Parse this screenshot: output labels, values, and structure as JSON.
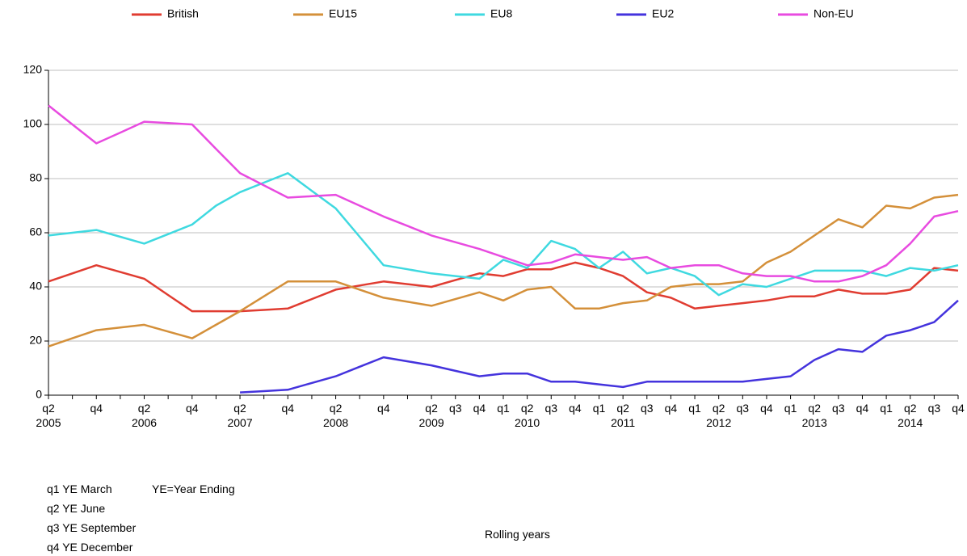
{
  "chart_data": {
    "type": "line",
    "categories": [
      "q2\n2005",
      null,
      "q4",
      null,
      "q2\n2006",
      null,
      "q4",
      null,
      "q2\n2007",
      null,
      "q4",
      null,
      "q2\n2008",
      null,
      "q4",
      null,
      "q2\n2009",
      "q3",
      "q4",
      "q1",
      "q2\n2010",
      "q3",
      "q4",
      "q1",
      "q2\n2011",
      "q3",
      "q4",
      "q1",
      "q2\n2012",
      "q3",
      "q4",
      "q1",
      "q2\n2013",
      "q3",
      "q4",
      "q1",
      "q2\n2014",
      "q3",
      "q4"
    ],
    "series": [
      {
        "name": "British",
        "color": "#e03c31",
        "values": [
          42,
          45,
          48,
          45.5,
          43,
          37,
          31,
          31,
          31,
          31.5,
          32,
          35.5,
          39,
          40.5,
          42,
          41,
          40,
          42.5,
          45,
          44,
          46.5,
          46.5,
          49,
          47,
          44,
          38,
          36,
          32,
          33,
          34,
          35,
          36.5,
          36.5,
          39,
          37.5,
          37.5,
          39,
          47,
          46
        ]
      },
      {
        "name": "EU15",
        "color": "#d4903a",
        "values": [
          18,
          21,
          24,
          25,
          26,
          23.5,
          21,
          26,
          31,
          36.5,
          42,
          42,
          42,
          39,
          36,
          34.5,
          33,
          35.5,
          38,
          35,
          39,
          40,
          32,
          32,
          34,
          35,
          40,
          41,
          41,
          42,
          49,
          53,
          59,
          65,
          62,
          70,
          69,
          73,
          74
        ]
      },
      {
        "name": "EU8",
        "color": "#3fd9e0",
        "values": [
          59,
          60,
          61,
          58.5,
          56,
          59.5,
          63,
          70,
          75,
          78.5,
          82,
          75.5,
          69,
          58.5,
          48,
          46.5,
          45,
          44,
          43,
          50,
          47,
          57,
          54,
          47,
          53,
          45,
          47,
          44,
          37,
          41,
          40,
          43,
          46,
          46,
          46,
          44,
          47,
          46,
          48
        ]
      },
      {
        "name": "EU2",
        "color": "#4433dd",
        "values": [
          null,
          null,
          null,
          null,
          null,
          null,
          null,
          null,
          1,
          1.5,
          2,
          4.5,
          7,
          10.5,
          14,
          12.5,
          11,
          9,
          7,
          8,
          8,
          5,
          5,
          4,
          3,
          5,
          5,
          5,
          5,
          5,
          6,
          7,
          13,
          17,
          16,
          22,
          24,
          27,
          35
        ]
      },
      {
        "name": "Non-EU",
        "color": "#e84be0",
        "values": [
          107,
          100,
          93,
          97,
          101,
          100.5,
          100,
          91,
          82,
          77.5,
          73,
          73.5,
          74,
          70,
          66,
          62.5,
          59,
          56.5,
          54,
          51,
          48,
          49,
          52,
          51,
          50,
          51,
          47,
          48,
          48,
          45,
          44,
          44,
          42,
          42,
          44,
          48,
          56,
          66,
          68
        ]
      }
    ],
    "ylim": [
      0,
      120
    ],
    "yticks": [
      0,
      20,
      40,
      60,
      80,
      100,
      120
    ],
    "grid": true,
    "legend": "top",
    "xlabel": "Rolling years",
    "notes": [
      "q1 YE March",
      "q2 YE June",
      "q3 YE September",
      "q4 YE December"
    ],
    "abbreviation": "YE=Year Ending"
  }
}
